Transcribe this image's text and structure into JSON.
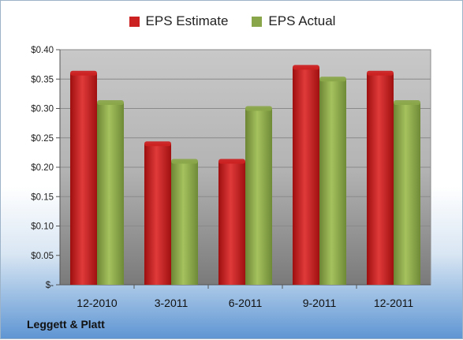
{
  "company_label": "Leggett & Platt",
  "chart_data": {
    "type": "bar",
    "categories": [
      "12-2010",
      "3-2011",
      "6-2011",
      "9-2011",
      "12-2011"
    ],
    "series": [
      {
        "name": "EPS Estimate",
        "values": [
          0.36,
          0.24,
          0.21,
          0.37,
          0.36
        ],
        "color": "#cc2222"
      },
      {
        "name": "EPS Actual",
        "values": [
          0.31,
          0.21,
          0.3,
          0.35,
          0.31
        ],
        "color": "#8aa64a"
      }
    ],
    "ylim": [
      0,
      0.4
    ],
    "yticks": [
      0,
      0.05,
      0.1,
      0.15,
      0.2,
      0.25,
      0.3,
      0.35,
      0.4
    ],
    "ytick_labels": [
      "$-",
      "$0.05",
      "$0.10",
      "$0.15",
      "$0.20",
      "$0.25",
      "$0.30",
      "$0.35",
      "$0.40"
    ],
    "legend_position": "top",
    "grid": true
  }
}
